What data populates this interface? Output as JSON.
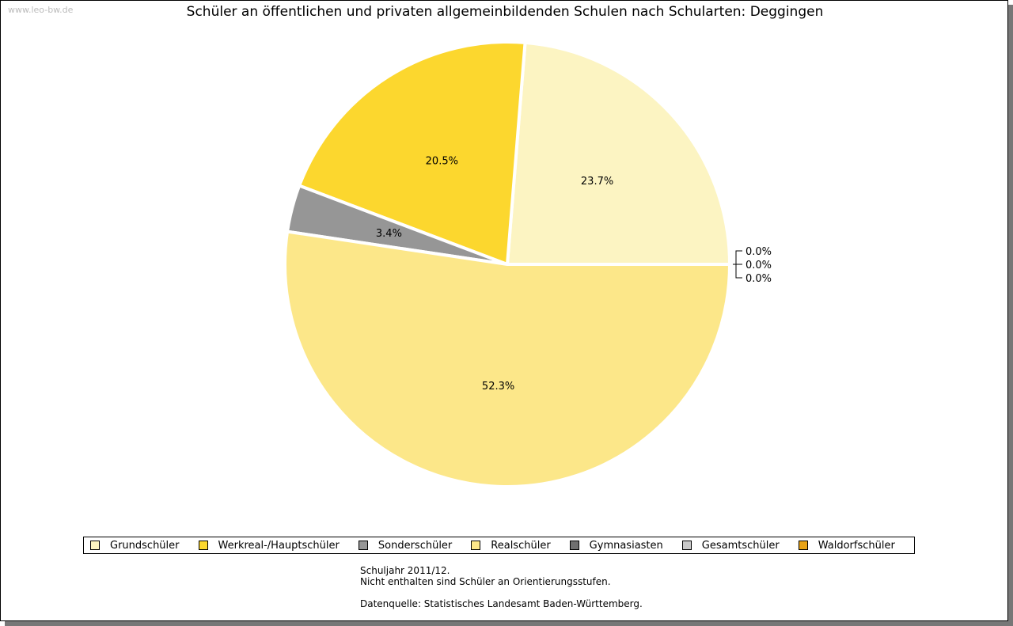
{
  "watermark": "www.leo-bw.de",
  "chart_data": {
    "type": "pie",
    "title": "Schüler an öffentlichen und privaten allgemeinbildenden Schulen nach Schularten: Deggingen",
    "slices": [
      {
        "label": "Grundschüler",
        "value": 23.7,
        "display": "23.7%",
        "color": "#FCF4C2"
      },
      {
        "label": "Werkreal-/Hauptschüler",
        "value": 20.5,
        "display": "20.5%",
        "color": "#FCD72E"
      },
      {
        "label": "Sonderschüler",
        "value": 3.4,
        "display": "3.4%",
        "color": "#969696"
      },
      {
        "label": "Realschüler",
        "value": 52.3,
        "display": "52.3%",
        "color": "#FCE789"
      },
      {
        "label": "Gymnasiasten",
        "value": 0.0,
        "display": "0.0%",
        "color": "#707070"
      },
      {
        "label": "Gesamtschüler",
        "value": 0.0,
        "display": "0.0%",
        "color": "#C8C8C8"
      },
      {
        "label": "Waldorfschüler",
        "value": 0.0,
        "display": "0.0%",
        "color": "#E8A317"
      }
    ],
    "legend_position": "bottom"
  },
  "notes": [
    "Schuljahr 2011/12.",
    "Nicht enthalten sind Schüler an Orientierungsstufen.",
    "",
    "Datenquelle: Statistisches Landesamt Baden-Württemberg."
  ]
}
